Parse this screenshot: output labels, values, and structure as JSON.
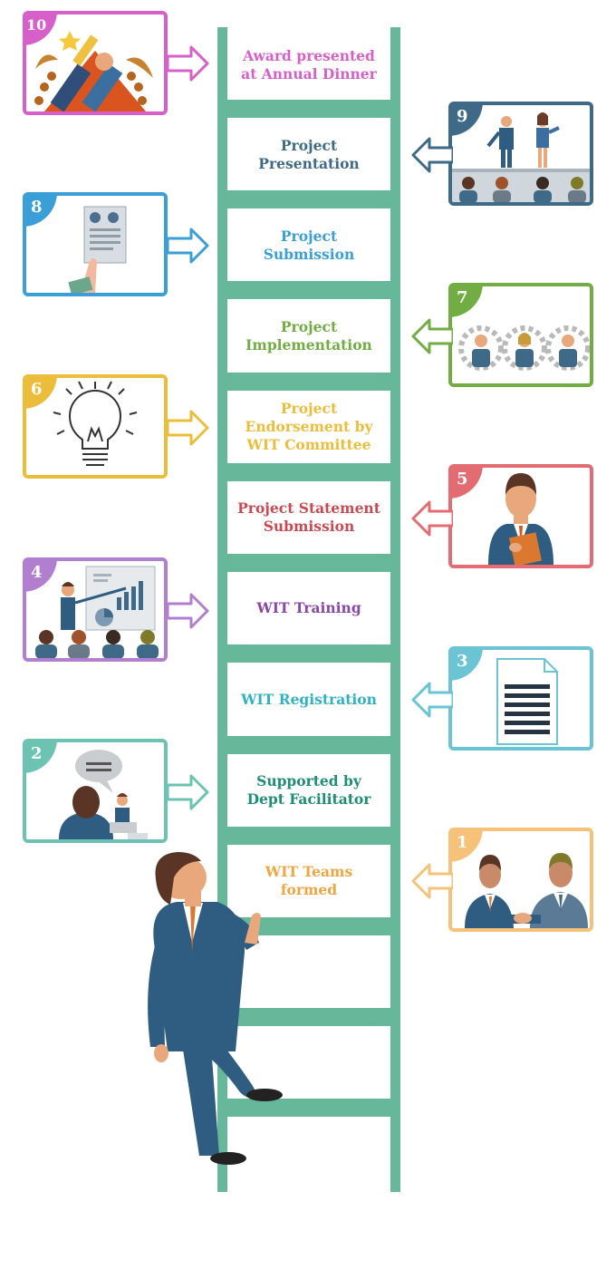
{
  "steps": [
    {
      "number": "10",
      "label": "Award presented\nat Annual Dinner",
      "color": "#d65fc9"
    },
    {
      "number": "9",
      "label": "Project\nPresentation",
      "color": "#3f6a87"
    },
    {
      "number": "8",
      "label": "Project\nSubmission",
      "color": "#3a9fd6"
    },
    {
      "number": "7",
      "label": "Project\nImplementation",
      "color": "#72ad43"
    },
    {
      "number": "6",
      "label": "Project\nEndorsement by\nWIT Committee",
      "color": "#ecbd3a"
    },
    {
      "number": "5",
      "label": "Project Statement\nSubmission",
      "color": "#c94a52",
      "card_color": "#e36c73"
    },
    {
      "number": "4",
      "label": "WIT Training",
      "color": "#8a48a6",
      "card_color": "#b27fd0"
    },
    {
      "number": "3",
      "label": "WIT Registration",
      "color": "#2fb3c4",
      "card_color": "#6ac4d4"
    },
    {
      "number": "2",
      "label": "Supported by\nDept Facilitator",
      "color": "#1f8e76",
      "card_color": "#6cc3b2"
    },
    {
      "number": "1",
      "label": "WIT Teams\nformed",
      "color": "#f0a540",
      "card_color": "#f6c27a"
    }
  ],
  "icons": [
    "trophy-icon",
    "presentation-stage-icon",
    "report-hand-icon",
    "team-gears-icon",
    "lightbulb-icon",
    "businessman-folder-icon",
    "training-class-icon",
    "document-icon",
    "facilitator-meeting-icon",
    "handshake-icon"
  ],
  "ladder_color": "#67b79b"
}
